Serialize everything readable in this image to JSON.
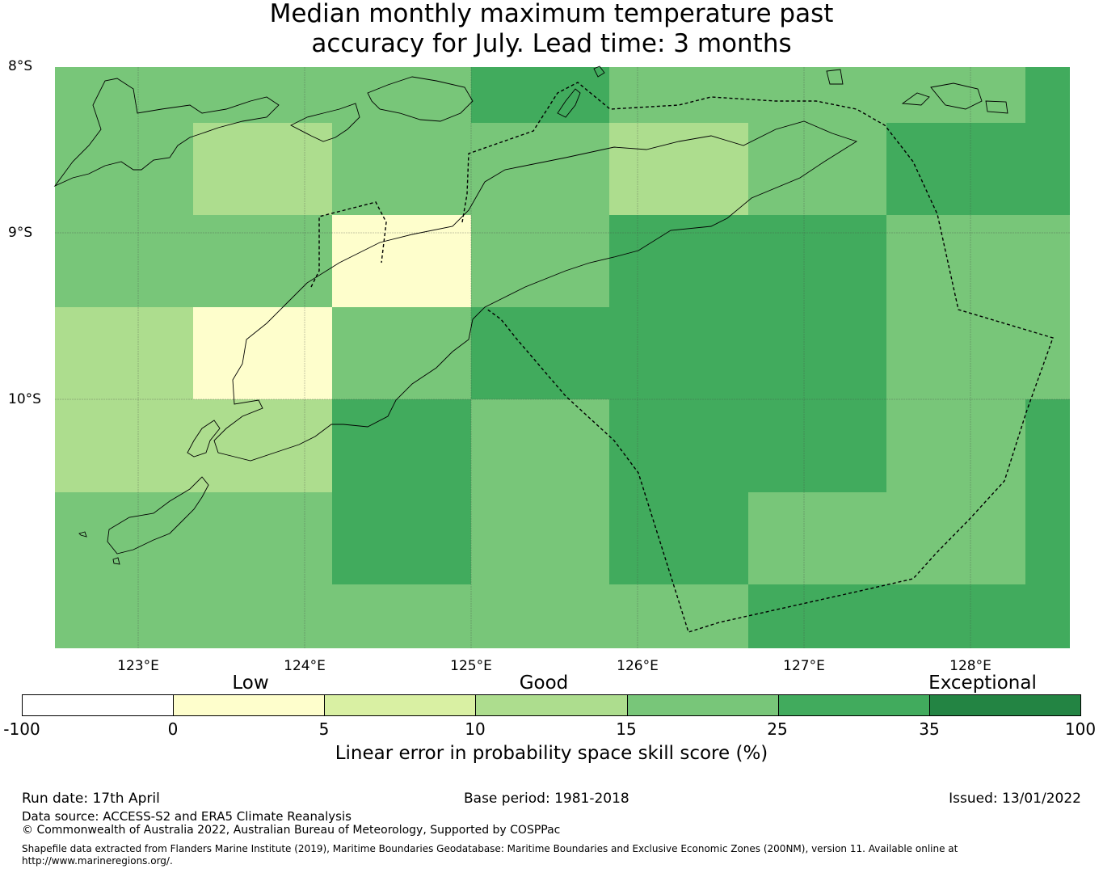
{
  "title_line1": "Median monthly maximum temperature past",
  "title_line2": "accuracy for July. Lead time: 3 months",
  "lat_labels": [
    "8°S",
    "9°S",
    "10°S"
  ],
  "lon_labels": [
    "123°E",
    "124°E",
    "125°E",
    "126°E",
    "127°E",
    "128°E"
  ],
  "colorbar": {
    "categories": [
      "Low",
      "Good",
      "Exceptional"
    ],
    "ticks": [
      "-100",
      "0",
      "5",
      "10",
      "15",
      "25",
      "35",
      "100"
    ],
    "colors": [
      "#ffffff",
      "#fefecc",
      "#d9f0a3",
      "#addd8e",
      "#78c679",
      "#41ab5d",
      "#238443"
    ],
    "label": "Linear error in probability space skill score (%)"
  },
  "grid_values": [
    [
      15,
      15,
      15,
      25,
      15,
      15,
      15,
      25
    ],
    [
      15,
      10,
      15,
      15,
      10,
      15,
      25,
      25
    ],
    [
      15,
      15,
      0,
      15,
      25,
      25,
      15,
      15
    ],
    [
      10,
      0,
      15,
      25,
      25,
      25,
      15,
      15
    ],
    [
      10,
      10,
      25,
      15,
      25,
      25,
      15,
      25
    ],
    [
      15,
      15,
      25,
      15,
      25,
      15,
      15,
      25
    ],
    [
      15,
      15,
      15,
      15,
      15,
      25,
      25,
      25
    ]
  ],
  "footer": {
    "run_date": "Run date: 17th April",
    "base_period": "Base period: 1981-2018",
    "issued": "Issued: 13/01/2022",
    "data_source": "Data source: ACCESS-S2 and ERA5 Climate Reanalysis",
    "copyright": "© Commonwealth of Australia 2022, Australian Bureau of Meteorology, Supported by COSPPac",
    "shapefile_line1": "Shapefile data extracted from Flanders Marine Institute (2019), Maritime Boundaries Geodatabase: Maritime Boundaries and Exclusive Economic Zones (200NM), version 11. Available online at",
    "shapefile_line2": "http://www.marineregions.org/."
  }
}
